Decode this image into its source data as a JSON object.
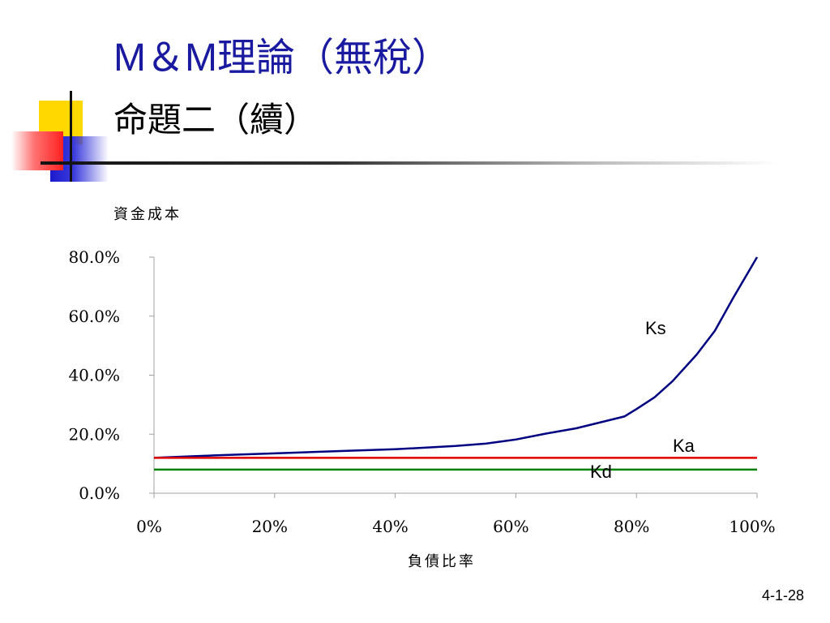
{
  "slide": {
    "title_line1": "M＆M理論（無稅）",
    "title_line2": "命題二（續）",
    "slide_number": "4-1-28"
  },
  "colors": {
    "title": "#1a1aa0",
    "ks_line": "#000080",
    "ka_line": "#e00000",
    "kd_line": "#008000"
  },
  "chart_data": {
    "type": "line",
    "title": "",
    "ylabel": "資金成本",
    "xlabel": "負債比率",
    "x": [
      0,
      10,
      20,
      30,
      40,
      50,
      55,
      60,
      65,
      70,
      75,
      78,
      80,
      83,
      86,
      90,
      93,
      96,
      100
    ],
    "xlim": [
      0,
      100
    ],
    "ylim": [
      0,
      80
    ],
    "x_ticks": [
      "0%",
      "20%",
      "40%",
      "60%",
      "80%",
      "100%"
    ],
    "y_ticks": [
      "0.0%",
      "20.0%",
      "40.0%",
      "60.0%",
      "80.0%"
    ],
    "grid": false,
    "series": [
      {
        "name": "Ks",
        "values": [
          12,
          12.8,
          13.5,
          14.2,
          14.9,
          16,
          16.8,
          18.2,
          20.2,
          22,
          24.5,
          26,
          28.5,
          32.5,
          38,
          47,
          55,
          66,
          80
        ]
      },
      {
        "name": "Ka",
        "values": [
          12,
          12,
          12,
          12,
          12,
          12,
          12,
          12,
          12,
          12,
          12,
          12,
          12,
          12,
          12,
          12,
          12,
          12,
          12
        ]
      },
      {
        "name": "Kd",
        "values": [
          8,
          8,
          8,
          8,
          8,
          8,
          8,
          8,
          8,
          8,
          8,
          8,
          8,
          8,
          8,
          8,
          8,
          8,
          8
        ]
      }
    ]
  }
}
